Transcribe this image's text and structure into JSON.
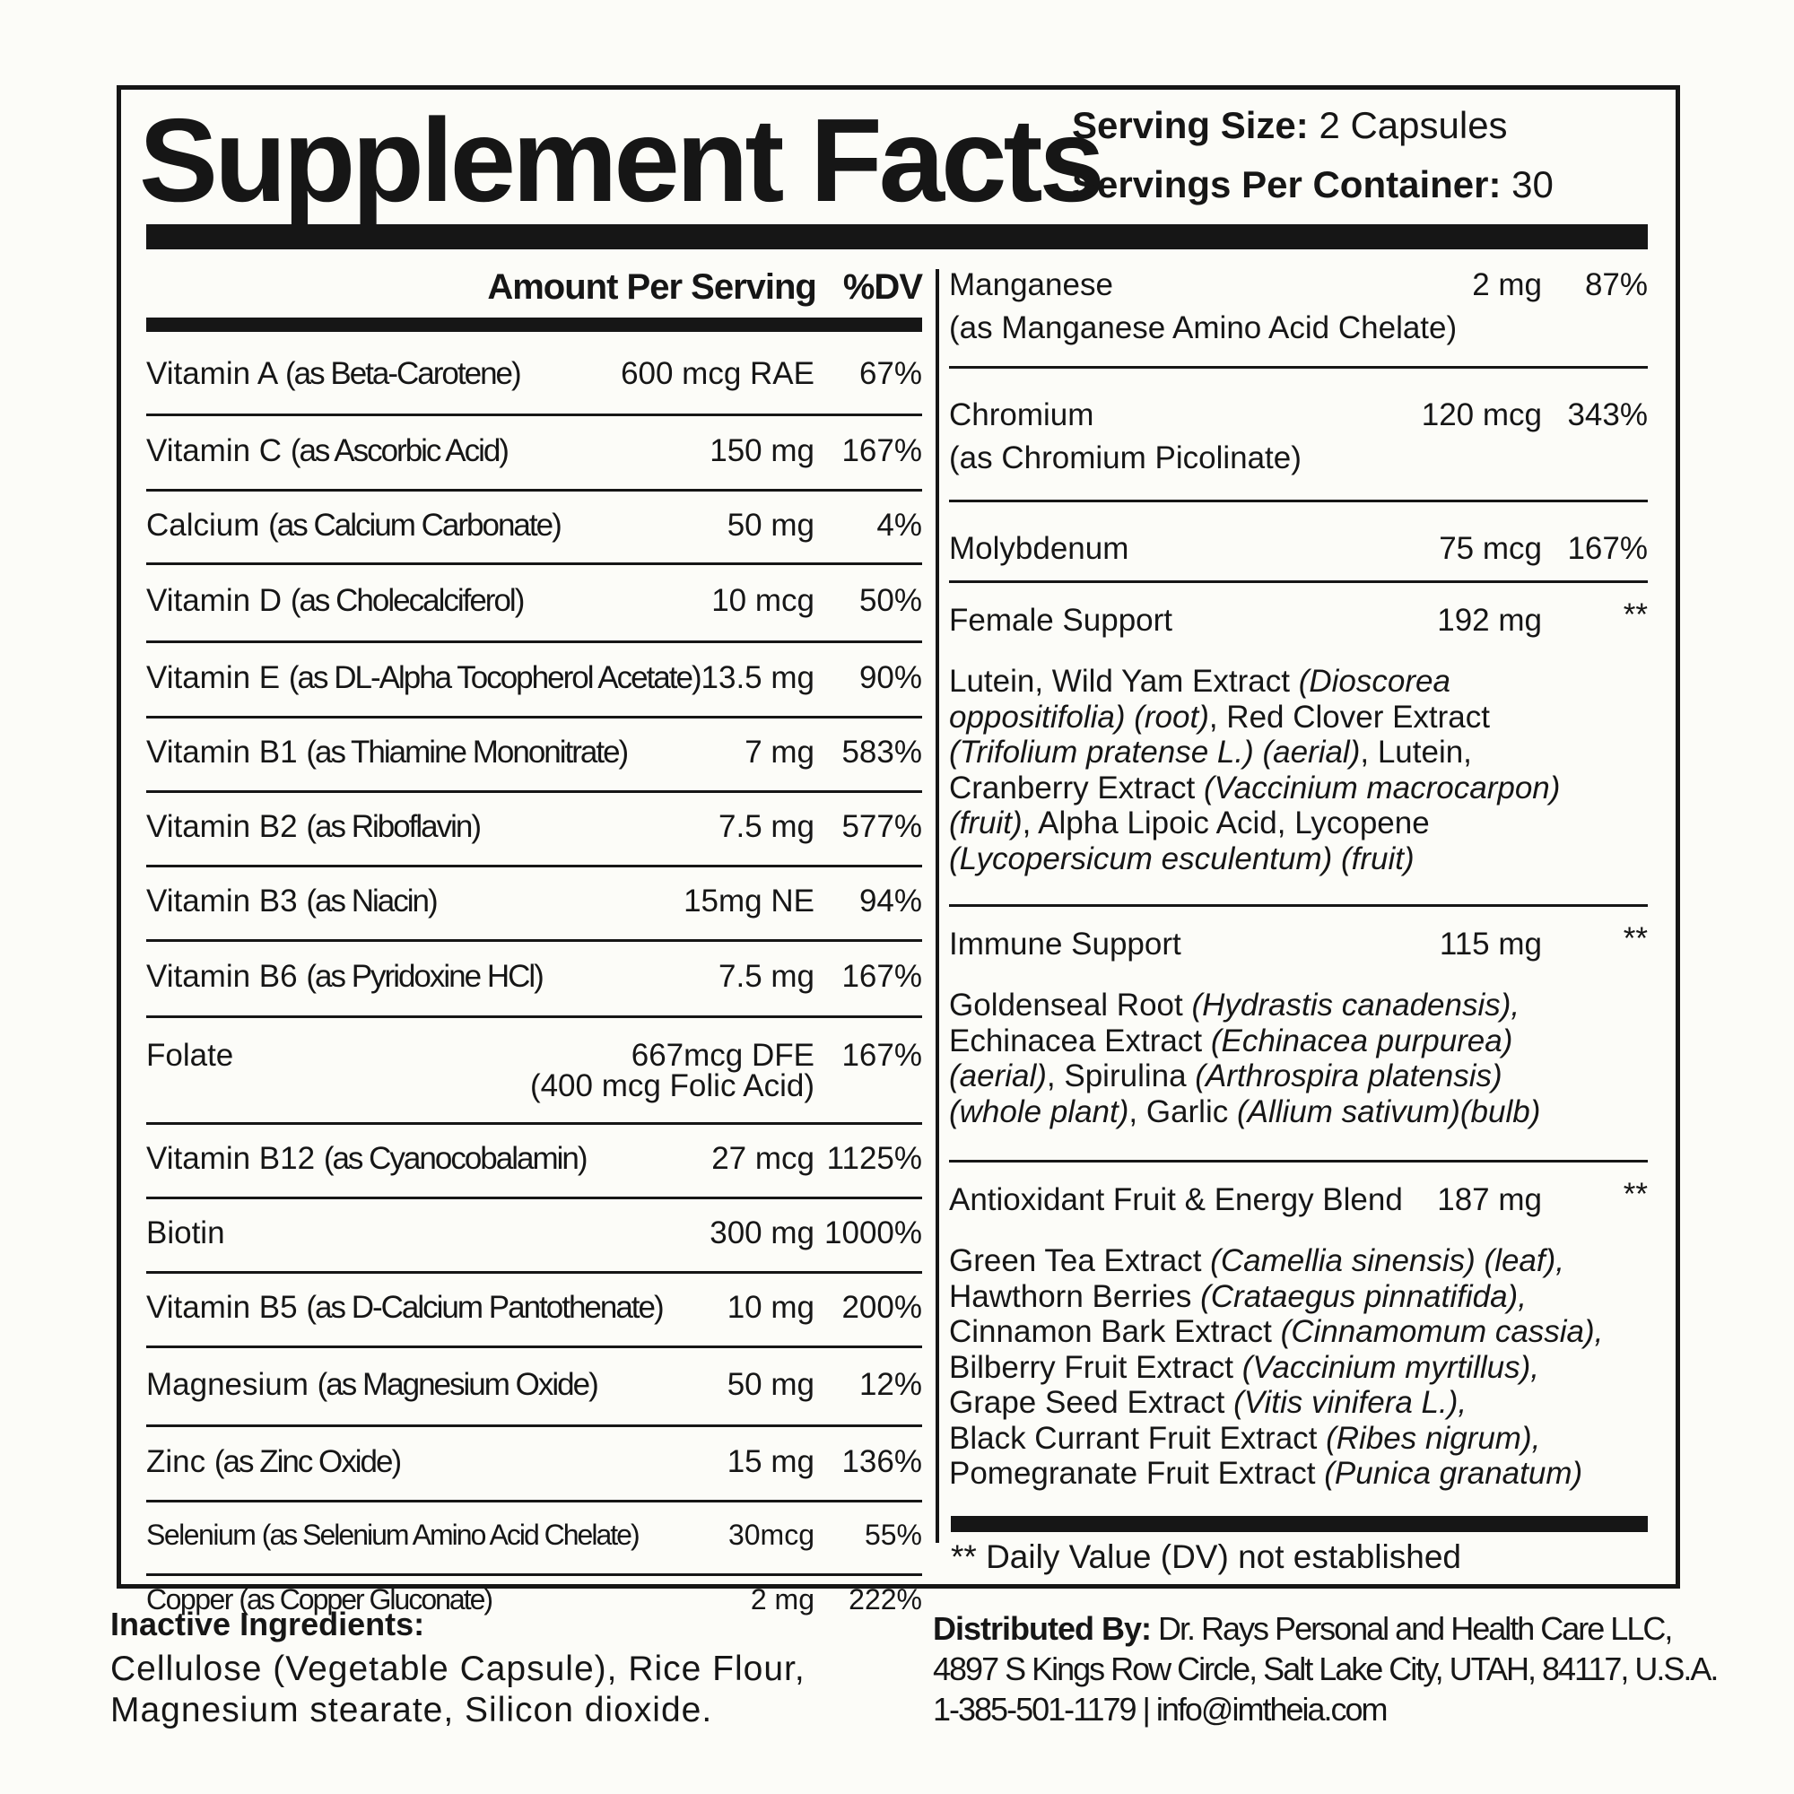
{
  "header": {
    "title": "Supplement Facts",
    "serving_size_label": "Serving Size:",
    "serving_size_value": "2 Capsules",
    "servings_per_container_label": "Servings Per Container:",
    "servings_per_container_value": "30"
  },
  "columns": {
    "amount_per_serving": "Amount Per Serving",
    "dv": "%DV"
  },
  "left_rows": [
    {
      "name": "Vitamin A",
      "source": "(as Beta-Carotene)",
      "amount": "600 mcg RAE",
      "dv": "67%"
    },
    {
      "name": "Vitamin C",
      "source": "(as Ascorbic Acid)",
      "amount": "150 mg",
      "dv": "167%"
    },
    {
      "name": "Calcium",
      "source": "(as Calcium Carbonate)",
      "amount": "50 mg",
      "dv": "4%"
    },
    {
      "name": "Vitamin D",
      "source": "(as Cholecalciferol)",
      "amount": "10 mcg",
      "dv": "50%"
    },
    {
      "name": "Vitamin E",
      "source": "(as DL-Alpha Tocopherol Acetate)",
      "amount": "13.5 mg",
      "dv": "90%"
    },
    {
      "name": "Vitamin B1",
      "source": "(as Thiamine Mononitrate)",
      "amount": "7 mg",
      "dv": "583%"
    },
    {
      "name": "Vitamin B2",
      "source": "(as Riboflavin)",
      "amount": "7.5 mg",
      "dv": "577%"
    },
    {
      "name": "Vitamin B3",
      "source": "(as Niacin)",
      "amount": "15mg NE",
      "dv": "94%"
    },
    {
      "name": "Vitamin B6",
      "source": "(as Pyridoxine HCl)",
      "amount": "7.5 mg",
      "dv": "167%"
    },
    {
      "name": "Folate",
      "source": "",
      "amount": "667mcg DFE",
      "amount_line2": "(400 mcg Folic Acid)",
      "dv": "167%"
    },
    {
      "name": "Vitamin B12",
      "source": "(as Cyanocobalamin)",
      "amount": "27 mcg",
      "dv": "1125%"
    },
    {
      "name": "Biotin",
      "source": "",
      "amount": "300 mg",
      "dv": "1000%"
    },
    {
      "name": "Vitamin B5",
      "source": "(as D-Calcium Pantothenate)",
      "amount": "10 mg",
      "dv": "200%"
    },
    {
      "name": "Magnesium",
      "source": "(as Magnesium Oxide)",
      "amount": "50 mg",
      "dv": "12%"
    },
    {
      "name": "Zinc",
      "source": "(as Zinc Oxide)",
      "amount": "15 mg",
      "dv": "136%"
    },
    {
      "name": "Selenium",
      "source": "(as Selenium Amino Acid Chelate)",
      "amount": "30mcg",
      "dv": "55%"
    },
    {
      "name": "Copper",
      "source": "(as Copper Gluconate)",
      "amount": "2 mg",
      "dv": "222%"
    }
  ],
  "right_rows": [
    {
      "name": "Manganese",
      "line2": "(as Manganese Amino Acid Chelate)",
      "amount": "2 mg",
      "dv": "87%"
    },
    {
      "name": "Chromium",
      "line2": "(as Chromium Picolinate)",
      "amount": "120 mcg",
      "dv": "343%"
    },
    {
      "name": "Molybdenum",
      "amount": "75 mcg",
      "dv": "167%"
    }
  ],
  "blends": [
    {
      "name": "Female Support",
      "amount": "192 mg",
      "dv": "**",
      "lines": [
        [
          {
            "t": "Lutein, Wild Yam Extract "
          },
          {
            "t": "(Dioscorea",
            "i": true
          }
        ],
        [
          {
            "t": "oppositifolia) (root)",
            "i": true
          },
          {
            "t": ", Red Clover Extract"
          }
        ],
        [
          {
            "t": "(Trifolium pratense L.) (aerial)",
            "i": true
          },
          {
            "t": ", Lutein,"
          }
        ],
        [
          {
            "t": "Cranberry Extract "
          },
          {
            "t": "(Vaccinium macrocarpon)",
            "i": true
          }
        ],
        [
          {
            "t": "(fruit)",
            "i": true
          },
          {
            "t": ", Alpha Lipoic Acid, Lycopene"
          }
        ],
        [
          {
            "t": "(Lycopersicum esculentum) (fruit)",
            "i": true
          }
        ]
      ]
    },
    {
      "name": "Immune Support",
      "amount": "115 mg",
      "dv": "**",
      "lines": [
        [
          {
            "t": "Goldenseal Root "
          },
          {
            "t": "(Hydrastis canadensis),",
            "i": true
          }
        ],
        [
          {
            "t": "Echinacea Extract "
          },
          {
            "t": "(Echinacea purpurea)",
            "i": true
          }
        ],
        [
          {
            "t": "(aerial)",
            "i": true
          },
          {
            "t": ", Spirulina "
          },
          {
            "t": "(Arthrospira platensis)",
            "i": true
          }
        ],
        [
          {
            "t": "(whole plant)",
            "i": true
          },
          {
            "t": ", Garlic "
          },
          {
            "t": "(Allium sativum)(bulb)",
            "i": true
          }
        ]
      ]
    },
    {
      "name": "Antioxidant Fruit & Energy Blend",
      "amount": "187 mg",
      "dv": "**",
      "lines": [
        [
          {
            "t": "Green Tea Extract "
          },
          {
            "t": "(Camellia sinensis) (leaf),",
            "i": true
          }
        ],
        [
          {
            "t": "Hawthorn Berries "
          },
          {
            "t": "(Crataegus pinnatifida),",
            "i": true
          }
        ],
        [
          {
            "t": "Cinnamon Bark Extract "
          },
          {
            "t": "(Cinnamomum cassia),",
            "i": true
          }
        ],
        [
          {
            "t": "Bilberry Fruit Extract "
          },
          {
            "t": "(Vaccinium myrtillus),",
            "i": true
          }
        ],
        [
          {
            "t": "Grape Seed Extract "
          },
          {
            "t": "(Vitis vinifera L.),",
            "i": true
          }
        ],
        [
          {
            "t": "Black Currant Fruit Extract "
          },
          {
            "t": "(Ribes nigrum),",
            "i": true
          }
        ],
        [
          {
            "t": "Pomegranate Fruit Extract "
          },
          {
            "t": "(Punica granatum)",
            "i": true
          }
        ]
      ]
    }
  ],
  "dv_note": "** Daily Value (DV) not established",
  "inactive": {
    "heading": "Inactive Ingredients:",
    "line1": "Cellulose (Vegetable Capsule), Rice Flour,",
    "line2": "Magnesium stearate, Silicon dioxide."
  },
  "distributor": {
    "label": "Distributed By:",
    "name": "Dr. Rays Personal and Health Care LLC,",
    "address": "4897 S Kings Row Circle, Salt Lake City, UTAH, 84117, U.S.A.",
    "contact": "1-385-501-1179 | info@imtheia.com"
  }
}
